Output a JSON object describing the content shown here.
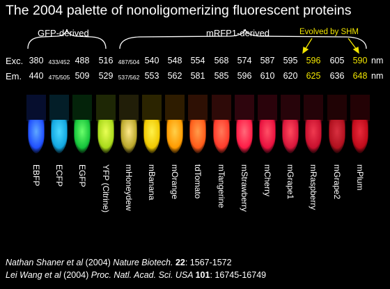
{
  "title": "The 2004 palette of nonoligomerizing fluorescent proteins",
  "groups": {
    "gfp": "GFP-derived",
    "mrfp": "mRFP1-derived",
    "shm": "Evolved by SHM"
  },
  "rows": {
    "exc_label": "Exc.",
    "em_label": "Em.",
    "unit": "nm"
  },
  "colors": {
    "background": "#000000",
    "text": "#ffffff",
    "shm_highlight": "#f2e600"
  },
  "proteins": [
    {
      "name": "EBFP",
      "exc": "380",
      "em": "440",
      "color": "#1f4fff",
      "glow": "#5fa8ff"
    },
    {
      "name": "ECFP",
      "exc": "433/452",
      "em": "475/505",
      "color": "#12a6e0",
      "glow": "#4ad8ff"
    },
    {
      "name": "EGFP",
      "exc": "488",
      "em": "509",
      "color": "#14c23a",
      "glow": "#6bff6b"
    },
    {
      "name": "YFP (Citrine)",
      "exc": "516",
      "em": "529",
      "color": "#a8d91a",
      "glow": "#eaff55"
    },
    {
      "name": "mHoneydew",
      "exc": "487/504",
      "em": "537/562",
      "color": "#b9a62a",
      "glow": "#ffe98a"
    },
    {
      "name": "mBanana",
      "exc": "540",
      "em": "553",
      "color": "#f0c800",
      "glow": "#fff24a"
    },
    {
      "name": "mOrange",
      "exc": "548",
      "em": "562",
      "color": "#ff9a00",
      "glow": "#ffd04a"
    },
    {
      "name": "tdTomato",
      "exc": "554",
      "em": "581",
      "color": "#ff5a18",
      "glow": "#ff9c4a"
    },
    {
      "name": "mTangerine",
      "exc": "568",
      "em": "585",
      "color": "#ff3a2a",
      "glow": "#ff7a5a"
    },
    {
      "name": "mStrawberry",
      "exc": "574",
      "em": "596",
      "color": "#ff1c46",
      "glow": "#ff6a7a"
    },
    {
      "name": "mCherry",
      "exc": "587",
      "em": "610",
      "color": "#e8103e",
      "glow": "#ff5066"
    },
    {
      "name": "mGrape1",
      "exc": "595",
      "em": "620",
      "color": "#d8153a",
      "glow": "#ff4a5e"
    },
    {
      "name": "mRaspberry",
      "exc": "596",
      "em": "625",
      "color": "#c8102e",
      "glow": "#f03a50",
      "shm": true
    },
    {
      "name": "mGrape2",
      "exc": "605",
      "em": "636",
      "color": "#b0101e",
      "glow": "#d83040"
    },
    {
      "name": "mPlum",
      "exc": "590",
      "em": "648",
      "color": "#c00a1a",
      "glow": "#e82a3a",
      "shm": true
    }
  ],
  "citations": [
    {
      "authors": "Nathan Shaner  et al",
      "year": " (2004) ",
      "journal": "Nature Biotech. ",
      "volume": "22",
      "pages": ": 1567-1572"
    },
    {
      "authors": "Lei Wang et al",
      "year": " (2004) ",
      "journal": "Proc. Natl. Acad. Sci. USA ",
      "volume": "101",
      "pages": ": 16745-16749"
    }
  ]
}
